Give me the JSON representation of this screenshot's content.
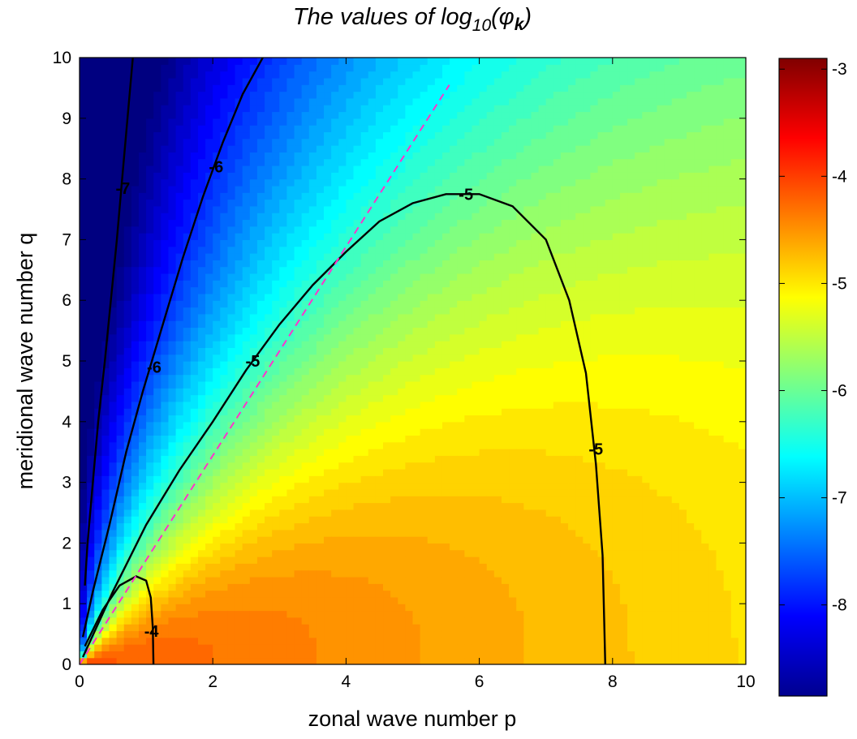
{
  "chart_data": {
    "type": "heatmap",
    "title": {
      "prefix": "The values of log",
      "subscript": "10",
      "open": "(φ",
      "phi_subscript": "k",
      "close": ")"
    },
    "xlabel": "zonal wave number p",
    "ylabel": "meridional wave number q",
    "xlim": [
      0,
      10
    ],
    "ylim": [
      0,
      10
    ],
    "x_ticks": [
      0,
      2,
      4,
      6,
      8,
      10
    ],
    "x_tick_labels": [
      "0",
      "2",
      "4",
      "6",
      "8",
      "10"
    ],
    "y_ticks": [
      0,
      1,
      2,
      3,
      4,
      5,
      6,
      7,
      8,
      9,
      10
    ],
    "y_tick_labels": [
      "0",
      "1",
      "2",
      "3",
      "4",
      "5",
      "6",
      "7",
      "8",
      "9",
      "10"
    ],
    "colorbar": {
      "colormap": "jet",
      "clim": [
        -8.85,
        -2.9
      ],
      "ticks": [
        -3,
        -4,
        -5,
        -6,
        -7,
        -8
      ],
      "tick_labels": [
        "-3",
        "-4",
        "-5",
        "-6",
        "-7",
        "-8"
      ]
    },
    "contours": [
      {
        "level": -7,
        "points": [
          [
            0.08,
            1.3
          ],
          [
            0.12,
            2.0
          ],
          [
            0.2,
            3.0
          ],
          [
            0.28,
            4.0
          ],
          [
            0.38,
            5.0
          ],
          [
            0.47,
            6.0
          ],
          [
            0.56,
            7.0
          ],
          [
            0.64,
            8.0
          ],
          [
            0.72,
            9.0
          ],
          [
            0.8,
            10.0
          ]
        ],
        "labels": [
          {
            "x": 0.65,
            "y": 7.85,
            "text": "-7"
          }
        ]
      },
      {
        "level": -6,
        "points": [
          [
            0.05,
            0.45
          ],
          [
            0.2,
            1.2
          ],
          [
            0.45,
            2.3
          ],
          [
            0.7,
            3.5
          ],
          [
            0.95,
            4.5
          ],
          [
            1.25,
            5.6
          ],
          [
            1.55,
            6.7
          ],
          [
            1.85,
            7.7
          ],
          [
            2.15,
            8.6
          ],
          [
            2.45,
            9.4
          ],
          [
            2.75,
            10.0
          ]
        ],
        "labels": [
          {
            "x": 1.12,
            "y": 4.9,
            "text": "-6"
          },
          {
            "x": 2.05,
            "y": 8.2,
            "text": "-6"
          }
        ]
      },
      {
        "level": -5,
        "points": [
          [
            0.05,
            0.12
          ],
          [
            0.5,
            1.2
          ],
          [
            1.0,
            2.3
          ],
          [
            1.5,
            3.2
          ],
          [
            2.0,
            4.0
          ],
          [
            2.5,
            4.85
          ],
          [
            3.0,
            5.6
          ],
          [
            3.5,
            6.25
          ],
          [
            4.0,
            6.8
          ],
          [
            4.5,
            7.3
          ],
          [
            5.0,
            7.6
          ],
          [
            5.5,
            7.75
          ],
          [
            6.0,
            7.75
          ],
          [
            6.5,
            7.55
          ],
          [
            7.0,
            7.0
          ],
          [
            7.35,
            6.0
          ],
          [
            7.6,
            4.8
          ],
          [
            7.75,
            3.3
          ],
          [
            7.85,
            1.8
          ],
          [
            7.88,
            0.5
          ],
          [
            7.89,
            0.0
          ]
        ],
        "labels": [
          {
            "x": 2.6,
            "y": 5.0,
            "text": "-5"
          },
          {
            "x": 5.8,
            "y": 7.75,
            "text": "-5"
          },
          {
            "x": 7.75,
            "y": 3.55,
            "text": "-5"
          }
        ]
      },
      {
        "level": -4,
        "points": [
          [
            0.08,
            0.3
          ],
          [
            0.35,
            0.9
          ],
          [
            0.6,
            1.3
          ],
          [
            0.85,
            1.45
          ],
          [
            1.0,
            1.38
          ],
          [
            1.07,
            1.1
          ],
          [
            1.1,
            0.6
          ],
          [
            1.11,
            0.0
          ]
        ],
        "labels": [
          {
            "x": 1.08,
            "y": 0.55,
            "text": "-4"
          }
        ]
      }
    ],
    "dashed_line": {
      "from": [
        0.0,
        0.0
      ],
      "to": [
        5.55,
        9.55
      ],
      "color": "#ff33cc"
    }
  }
}
